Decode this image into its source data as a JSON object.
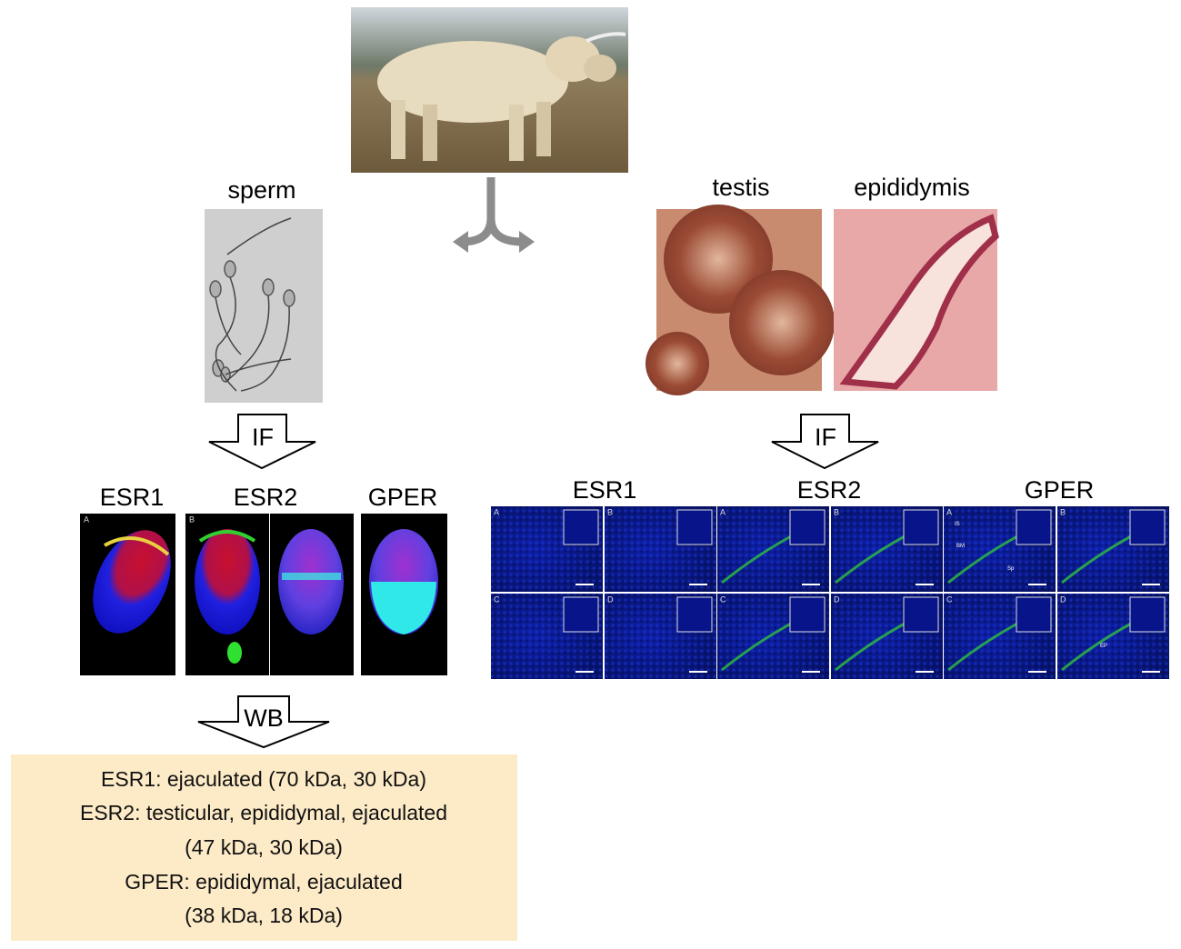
{
  "sperm": {
    "label": "sperm",
    "method": "IF",
    "markers": [
      "ESR1",
      "ESR2",
      "GPER"
    ],
    "panels": [
      "A",
      "B"
    ],
    "method2": "WB"
  },
  "tissues": {
    "labels": [
      "testis",
      "epididymis"
    ],
    "method": "IF",
    "markers": [
      "ESR1",
      "ESR2",
      "GPER"
    ],
    "panels": [
      "A",
      "B",
      "C",
      "D"
    ],
    "annotations": [
      "IS",
      "BM",
      "Sp",
      "EP"
    ]
  },
  "wb_results": [
    "ESR1: ejaculated (70 kDa, 30 kDa)",
    "ESR2: testicular, epididymal, ejaculated",
    "(47 kDa, 30 kDa)",
    "GPER: epididymal, ejaculated",
    "(38 kDa, 18 kDa)"
  ]
}
